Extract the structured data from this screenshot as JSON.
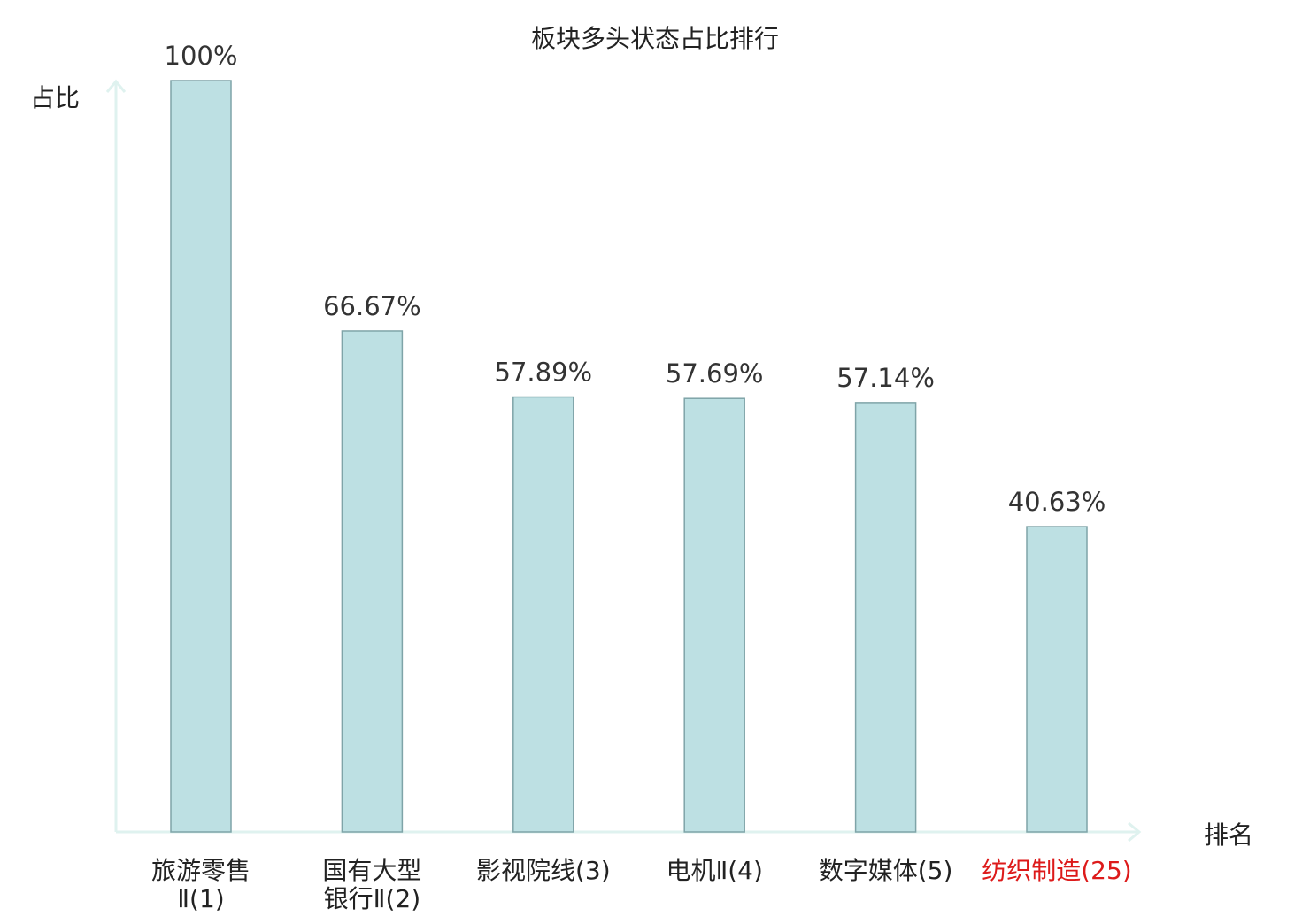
{
  "chart_data": {
    "type": "bar",
    "title": "板块多头状态占比排行",
    "ylabel": "占比",
    "xlabel": "排名",
    "categories": [
      [
        "旅游零售",
        "Ⅱ(1)"
      ],
      [
        "国有大型",
        "银行Ⅱ(2)"
      ],
      [
        "影视院线(3)"
      ],
      [
        "电机Ⅱ(4)"
      ],
      [
        "数字媒体(5)"
      ],
      [
        "纺织制造(25)"
      ]
    ],
    "values": [
      100,
      66.67,
      57.89,
      57.69,
      57.14,
      40.63
    ],
    "value_labels": [
      "100%",
      "66.67%",
      "57.89%",
      "57.69%",
      "57.14%",
      "40.63%"
    ],
    "highlight_index": 5,
    "ylim": [
      0,
      100
    ],
    "grid": false,
    "colors": {
      "bar_fill": "#bde0e3",
      "bar_stroke": "#7fa4a8",
      "axis": "#dff2ef",
      "text": "#222222",
      "value_text": "#333333",
      "highlight": "#dd1a1a"
    }
  }
}
